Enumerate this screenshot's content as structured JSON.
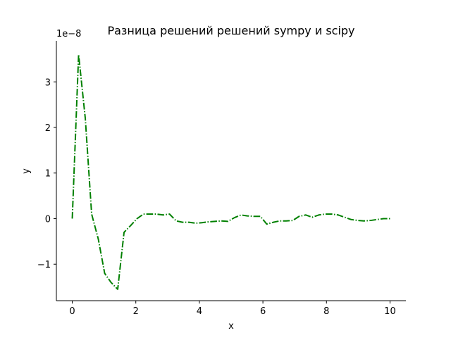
{
  "chart_data": {
    "type": "line",
    "title": "Разница решений решений sympy и scipy",
    "xlabel": "x",
    "ylabel": "y",
    "y_offset_label": "1e−8",
    "y_scale_exponent": -8,
    "xlim": [
      -0.5,
      10.5
    ],
    "ylim": [
      -1.8,
      3.9
    ],
    "x_ticks": [
      0,
      2,
      4,
      6,
      8,
      10
    ],
    "x_tick_labels": [
      "0",
      "2",
      "4",
      "6",
      "8",
      "10"
    ],
    "y_ticks": [
      -1,
      0,
      1,
      2,
      3
    ],
    "y_tick_labels": [
      "−1",
      "0",
      "1",
      "2",
      "3"
    ],
    "grid": false,
    "legend": false,
    "series": [
      {
        "color": "#008000",
        "line_style": "dash-dot",
        "x": [
          0.0,
          0.2,
          0.41,
          0.61,
          0.82,
          1.02,
          1.22,
          1.43,
          1.63,
          1.84,
          2.04,
          2.24,
          2.45,
          2.65,
          2.86,
          3.06,
          3.27,
          3.47,
          3.67,
          3.88,
          4.08,
          4.29,
          4.49,
          4.69,
          4.9,
          5.1,
          5.31,
          5.51,
          5.71,
          5.92,
          6.12,
          6.33,
          6.53,
          6.73,
          6.94,
          7.14,
          7.35,
          7.55,
          7.76,
          7.96,
          8.16,
          8.37,
          8.57,
          8.78,
          8.98,
          9.18,
          9.39,
          9.59,
          9.8,
          10.0
        ],
        "y": [
          0.0,
          3.6,
          2.2,
          0.1,
          -0.45,
          -1.2,
          -1.4,
          -1.55,
          -0.3,
          -0.15,
          0.0,
          0.1,
          0.1,
          0.1,
          0.08,
          0.1,
          -0.05,
          -0.08,
          -0.08,
          -0.1,
          -0.09,
          -0.07,
          -0.06,
          -0.05,
          -0.06,
          0.02,
          0.08,
          0.06,
          0.05,
          0.05,
          -0.12,
          -0.08,
          -0.05,
          -0.05,
          -0.04,
          0.05,
          0.08,
          0.03,
          0.08,
          0.1,
          0.1,
          0.08,
          0.03,
          -0.02,
          -0.04,
          -0.05,
          -0.04,
          -0.02,
          0.0,
          0.0
        ]
      }
    ]
  }
}
